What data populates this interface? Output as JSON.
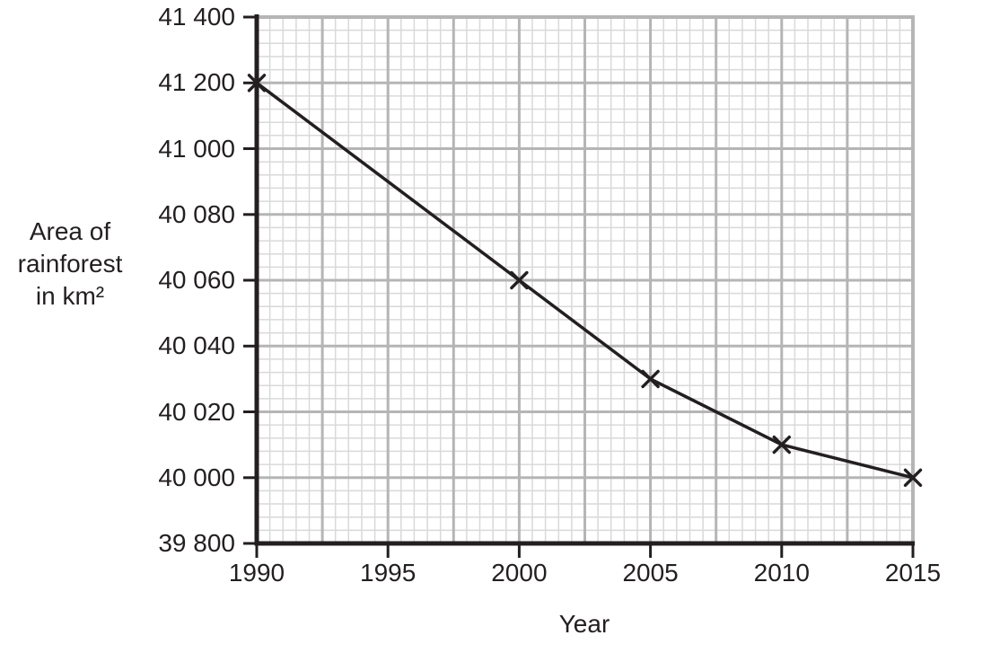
{
  "chart_data": {
    "type": "line",
    "title": "",
    "xlabel": "Year",
    "ylabel": "Area of rainforest in km²",
    "ylabel_lines": [
      "Area of",
      "rainforest",
      "in km²"
    ],
    "x": [
      1990,
      2000,
      2005,
      2010,
      2015
    ],
    "values": [
      41200,
      40060,
      40030,
      40010,
      40000
    ],
    "x_ticks": [
      "1990",
      "1995",
      "2000",
      "2005",
      "2010",
      "2015"
    ],
    "x_tick_values": [
      1990,
      1995,
      2000,
      2005,
      2010,
      2015
    ],
    "y_ticks": [
      "41 400",
      "41 200",
      "41 000",
      "40 080",
      "40 060",
      "40 040",
      "40 020",
      "40 000",
      "39 800"
    ],
    "y_tick_values": [
      41400,
      41200,
      41000,
      40080,
      40060,
      40040,
      40020,
      40000,
      39800
    ],
    "x_range": [
      1990,
      2015
    ],
    "marker": "x",
    "grid": "minor and major gridlines on",
    "legend": "none",
    "y_scale_hint": "tick labels equally spaced (non-linear broken scale)",
    "colors": {
      "line": "#231f20",
      "axis": "#231f20",
      "text": "#231f20",
      "grid_minor": "#d9d9d9",
      "grid_major": "#b5b5b5"
    }
  }
}
